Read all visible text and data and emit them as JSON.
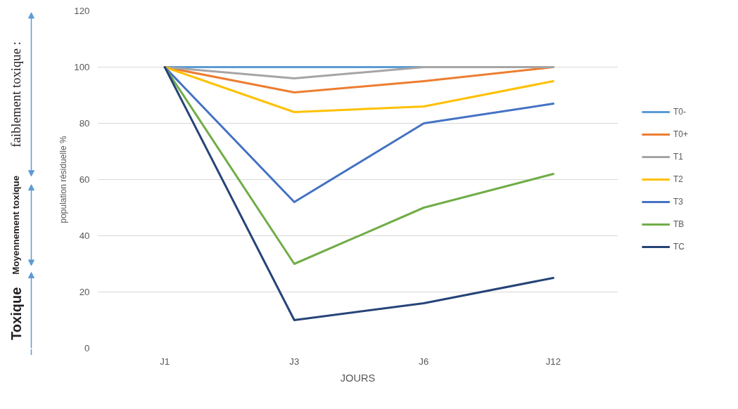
{
  "chart_data": {
    "type": "line",
    "xlabel": "JOURS",
    "ylabel": "population résiduelle %",
    "categories": [
      "J1",
      "J3",
      "J6",
      "J12"
    ],
    "series": [
      {
        "name": "T0-",
        "color": "#5b9bd5",
        "values": [
          100,
          100,
          100,
          100
        ]
      },
      {
        "name": "T0+",
        "color": "#ed7d31",
        "values": [
          100,
          91,
          95,
          100
        ]
      },
      {
        "name": "T1",
        "color": "#a5a5a5",
        "values": [
          100,
          96,
          100,
          100
        ]
      },
      {
        "name": "T2",
        "color": "#ffc000",
        "values": [
          100,
          84,
          86,
          95
        ]
      },
      {
        "name": "T3",
        "color": "#4472c4",
        "values": [
          100,
          52,
          80,
          87
        ]
      },
      {
        "name": "TB",
        "color": "#70ad47",
        "values": [
          100,
          30,
          50,
          62
        ]
      },
      {
        "name": "TC",
        "color": "#264478",
        "values": [
          100,
          10,
          16,
          25
        ]
      }
    ],
    "ylim": [
      0,
      120
    ],
    "yticks": [
      0,
      20,
      40,
      60,
      80,
      100,
      120
    ],
    "grid": "y",
    "legend": "right",
    "marker": "none",
    "line_style": "solid",
    "annotations": [
      "faiblement toxique :",
      "Moyennement toxique",
      "Toxique"
    ]
  }
}
